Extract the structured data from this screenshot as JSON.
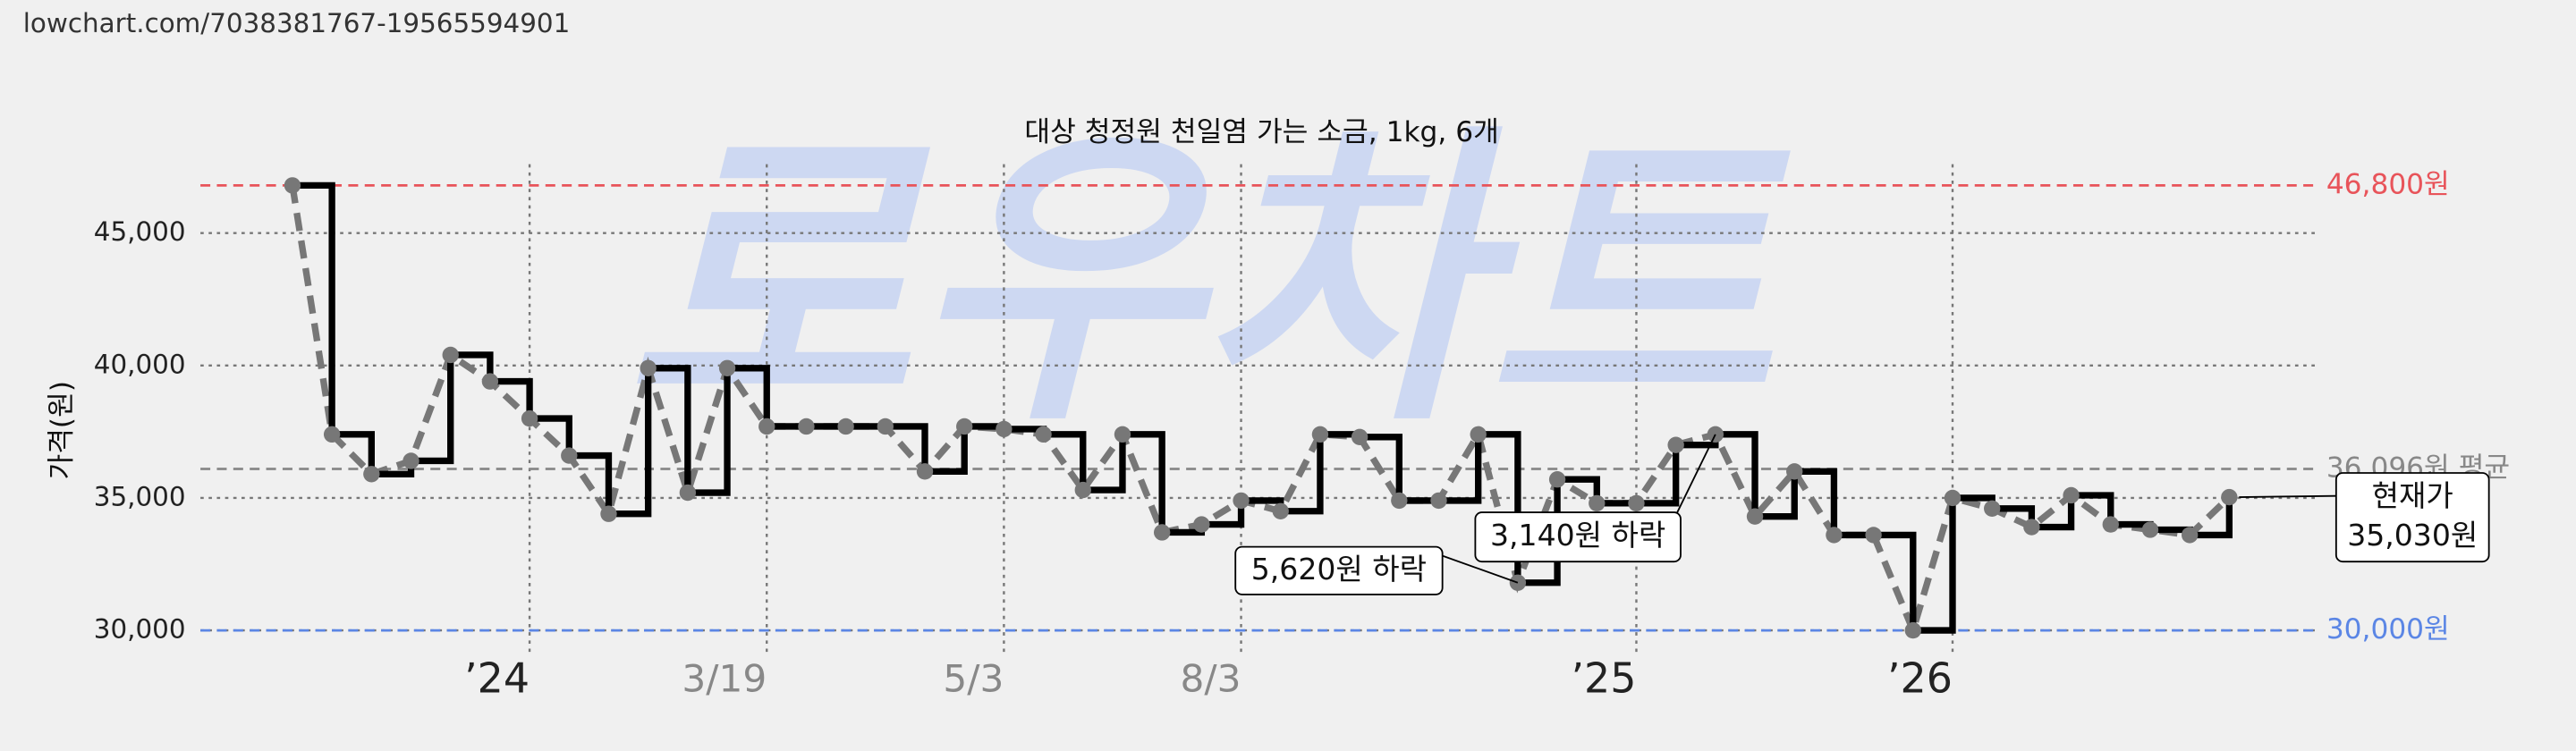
{
  "source_url": "lowchart.com/7038381767-19565594901",
  "chart_data": {
    "type": "step",
    "title": "대상 청정원 천일염 가는 소금, 1kg, 6개",
    "ylabel": "가격(원)",
    "watermark": "로우차트",
    "categories": [
      null,
      null,
      null,
      null,
      null,
      null,
      "’24",
      null,
      null,
      null,
      null,
      null,
      "3/19",
      null,
      null,
      null,
      null,
      null,
      "5/3",
      null,
      null,
      null,
      null,
      null,
      "8/3",
      null,
      null,
      null,
      null,
      null,
      null,
      null,
      null,
      null,
      "’25",
      null,
      null,
      null,
      null,
      null,
      null,
      null,
      "’26",
      null,
      null,
      null,
      null,
      null,
      null,
      null
    ],
    "series": [
      {
        "color": "#000000",
        "values": [
          46800,
          37400,
          35900,
          36400,
          40400,
          39400,
          38000,
          36600,
          34400,
          39900,
          35200,
          39900,
          37700,
          37700,
          37700,
          37700,
          36000,
          37700,
          37600,
          37400,
          35300,
          37400,
          33700,
          34000,
          34900,
          34500,
          37400,
          37300,
          34900,
          34900,
          37400,
          31800,
          35700,
          34800,
          34800,
          37000,
          37400,
          34300,
          36000,
          33600,
          33600,
          30000,
          35000,
          34600,
          33900,
          35100,
          34000,
          33800,
          33600,
          35030
        ]
      }
    ],
    "ylim": [
      29000,
      47600
    ],
    "yticks": [
      {
        "value": 30000,
        "label": "30,000"
      },
      {
        "value": 35000,
        "label": "35,000"
      },
      {
        "value": 40000,
        "label": "40,000"
      },
      {
        "value": 45000,
        "label": "45,000"
      }
    ],
    "grid": true,
    "reference_lines": [
      {
        "value": 46800,
        "label": "46,800원",
        "color": "#e8545a"
      },
      {
        "value": 36096,
        "label": "36,096원 평균",
        "color": "#888888"
      },
      {
        "value": 30000,
        "label": "30,000원",
        "color": "#5b86e5"
      }
    ],
    "annotations": [
      {
        "lines": [
          "5,620원 하락"
        ],
        "index": 31
      },
      {
        "lines": [
          "3,140원 하락"
        ],
        "index": 36
      },
      {
        "lines": [
          "현재가",
          "35,030원"
        ],
        "index": 49
      }
    ]
  }
}
